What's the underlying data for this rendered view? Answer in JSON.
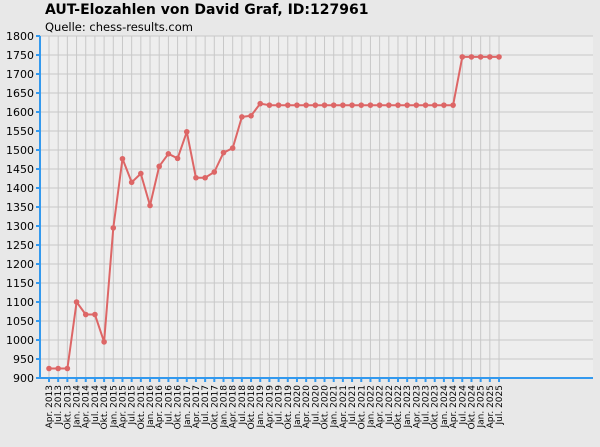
{
  "title": "AUT-Elozahlen von David Graf, ID:127961",
  "subtitle": "Quelle: chess-results.com",
  "colors": {
    "background": "#e8e8e8",
    "plot_background": "#eeeeee",
    "grid": "#c8c8c8",
    "axis": "#3399ee",
    "line": "#dd6666"
  },
  "chart_data": {
    "type": "line",
    "title": "AUT-Elozahlen von David Graf, ID:127961",
    "subtitle": "Quelle: chess-results.com",
    "ylim": [
      900,
      1800
    ],
    "yticks": [
      900,
      950,
      1000,
      1050,
      1100,
      1150,
      1200,
      1250,
      1300,
      1350,
      1400,
      1450,
      1500,
      1550,
      1600,
      1650,
      1700,
      1750,
      1800
    ],
    "grid": true,
    "categories": [
      "Apr. 2013",
      "Jul. 2013",
      "Okt. 2013",
      "Jan. 2014",
      "Apr. 2014",
      "Jul. 2014",
      "Okt. 2014",
      "Jan. 2015",
      "Apr. 2015",
      "Jul. 2015",
      "Okt. 2015",
      "Jan. 2016",
      "Apr. 2016",
      "Jul. 2016",
      "Okt. 2016",
      "Jan. 2017",
      "Apr. 2017",
      "Jul. 2017",
      "Okt. 2017",
      "Jan. 2018",
      "Apr. 2018",
      "Jul. 2018",
      "Okt. 2018",
      "Jan. 2019",
      "Apr. 2019",
      "Jul. 2019",
      "Okt. 2019",
      "Jan. 2020",
      "Apr. 2020",
      "Jul. 2020",
      "Okt. 2020",
      "Jan. 2021",
      "Apr. 2021",
      "Jul. 2021",
      "Okt. 2021",
      "Jan. 2022",
      "Apr. 2022",
      "Jul. 2022",
      "Okt. 2022",
      "Jan. 2023",
      "Apr. 2023",
      "Jul. 2023",
      "Okt. 2023",
      "Jan. 2024",
      "Apr. 2024",
      "Jul. 2024",
      "Okt. 2024",
      "Jan. 2025",
      "Apr. 2025",
      "Jul. 2025"
    ],
    "series": [
      {
        "values": [
          925,
          925,
          925,
          1100,
          1067,
          1067,
          995,
          1295,
          1477,
          1415,
          1438,
          1354,
          1457,
          1490,
          1478,
          1548,
          1427,
          1427,
          1442,
          1493,
          1505,
          1587,
          1590,
          1622,
          1618,
          1618,
          1618,
          1618,
          1618,
          1618,
          1618,
          1618,
          1618,
          1618,
          1618,
          1618,
          1618,
          1618,
          1618,
          1618,
          1618,
          1618,
          1618,
          1618,
          1618,
          1745,
          1745,
          1745,
          1745,
          1745
        ]
      }
    ]
  }
}
